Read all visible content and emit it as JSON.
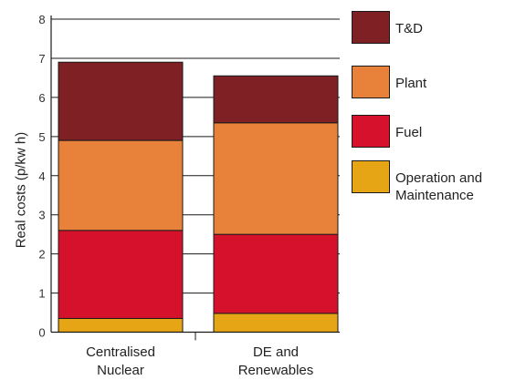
{
  "chart_data": {
    "type": "bar",
    "stacked": true,
    "title": "",
    "xlabel": "",
    "ylabel": "Real costs (p/kw h)",
    "ylim": [
      0,
      8
    ],
    "yticks": [
      "0",
      "1",
      "2",
      "3",
      "4",
      "5",
      "6",
      "7",
      "8"
    ],
    "grid": true,
    "legend_position": "right",
    "categories": [
      "Centralised\nNuclear",
      "DE and\nRenewables"
    ],
    "series": [
      {
        "name": "Operation and\nMaintenance",
        "color": "#e6a514",
        "values": [
          0.35,
          0.48
        ]
      },
      {
        "name": "Fuel",
        "color": "#d5112b",
        "values": [
          2.25,
          2.02
        ]
      },
      {
        "name": "Plant",
        "color": "#e8823a",
        "values": [
          2.3,
          2.85
        ]
      },
      {
        "name": "T&D",
        "color": "#7e2024",
        "values": [
          2.0,
          1.2
        ]
      }
    ]
  }
}
